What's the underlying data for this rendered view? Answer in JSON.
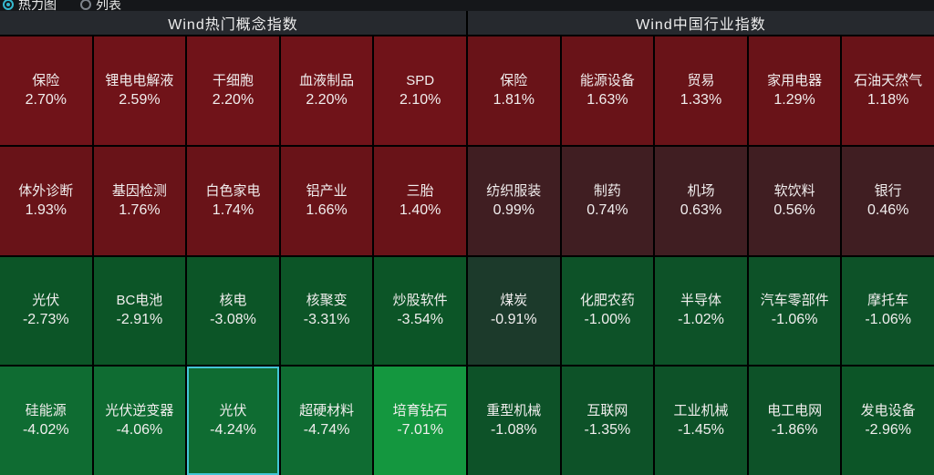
{
  "toolbar": {
    "view_options": [
      {
        "label": "热力图",
        "selected": true
      },
      {
        "label": "列表",
        "selected": false
      }
    ]
  },
  "colors": {
    "accent_cyan": "#35b9cf",
    "selected_cell_border": "#43c6d6",
    "panel_header_bg": "#26292e",
    "grid_line": "#000000",
    "toolbar_bg": "#15171a",
    "text": "#f1eeee",
    "red_strong": "#701319",
    "red_medium": "#691318",
    "red_weak": "#401e22",
    "green_weak": "#1c3a2b",
    "green_medium": "#0d5228",
    "green_strong": "#0c5527",
    "green_stronger": "#0f6c32",
    "green_max": "#14973f"
  },
  "chart_data": [
    {
      "type": "heatmap",
      "title": "Wind热门概念指数",
      "items": [
        {
          "label": "保险",
          "value": 2.7,
          "display": "2.70%",
          "bg": "#701319",
          "selected": false
        },
        {
          "label": "锂电电解液",
          "value": 2.59,
          "display": "2.59%",
          "bg": "#701319",
          "selected": false
        },
        {
          "label": "干细胞",
          "value": 2.2,
          "display": "2.20%",
          "bg": "#701319",
          "selected": false
        },
        {
          "label": "血液制品",
          "value": 2.2,
          "display": "2.20%",
          "bg": "#701319",
          "selected": false
        },
        {
          "label": "SPD",
          "value": 2.1,
          "display": "2.10%",
          "bg": "#701319",
          "selected": false
        },
        {
          "label": "体外诊断",
          "value": 1.93,
          "display": "1.93%",
          "bg": "#691318",
          "selected": false
        },
        {
          "label": "基因检测",
          "value": 1.76,
          "display": "1.76%",
          "bg": "#691318",
          "selected": false
        },
        {
          "label": "白色家电",
          "value": 1.74,
          "display": "1.74%",
          "bg": "#691318",
          "selected": false
        },
        {
          "label": "铝产业",
          "value": 1.66,
          "display": "1.66%",
          "bg": "#691318",
          "selected": false
        },
        {
          "label": "三胎",
          "value": 1.4,
          "display": "1.40%",
          "bg": "#691318",
          "selected": false
        },
        {
          "label": "光伏",
          "value": -2.73,
          "display": "-2.73%",
          "bg": "#0c5527",
          "selected": false
        },
        {
          "label": "BC电池",
          "value": -2.91,
          "display": "-2.91%",
          "bg": "#0c5527",
          "selected": false
        },
        {
          "label": "核电",
          "value": -3.08,
          "display": "-3.08%",
          "bg": "#0c5527",
          "selected": false
        },
        {
          "label": "核聚变",
          "value": -3.31,
          "display": "-3.31%",
          "bg": "#0c5527",
          "selected": false
        },
        {
          "label": "炒股软件",
          "value": -3.54,
          "display": "-3.54%",
          "bg": "#0c5527",
          "selected": false
        },
        {
          "label": "硅能源",
          "value": -4.02,
          "display": "-4.02%",
          "bg": "#0f6c32",
          "selected": false
        },
        {
          "label": "光伏逆变器",
          "value": -4.06,
          "display": "-4.06%",
          "bg": "#0f6c32",
          "selected": false
        },
        {
          "label": "光伏",
          "value": -4.24,
          "display": "-4.24%",
          "bg": "#0f6c32",
          "selected": true
        },
        {
          "label": "超硬材料",
          "value": -4.74,
          "display": "-4.74%",
          "bg": "#0f6c32",
          "selected": false
        },
        {
          "label": "培育钻石",
          "value": -7.01,
          "display": "-7.01%",
          "bg": "#14973f",
          "selected": false
        }
      ]
    },
    {
      "type": "heatmap",
      "title": "Wind中国行业指数",
      "items": [
        {
          "label": "保险",
          "value": 1.81,
          "display": "1.81%",
          "bg": "#691318",
          "selected": false
        },
        {
          "label": "能源设备",
          "value": 1.63,
          "display": "1.63%",
          "bg": "#691318",
          "selected": false
        },
        {
          "label": "贸易",
          "value": 1.33,
          "display": "1.33%",
          "bg": "#691318",
          "selected": false
        },
        {
          "label": "家用电器",
          "value": 1.29,
          "display": "1.29%",
          "bg": "#691318",
          "selected": false
        },
        {
          "label": "石油天然气",
          "value": 1.18,
          "display": "1.18%",
          "bg": "#691318",
          "selected": false
        },
        {
          "label": "纺织服装",
          "value": 0.99,
          "display": "0.99%",
          "bg": "#401e22",
          "selected": false
        },
        {
          "label": "制药",
          "value": 0.74,
          "display": "0.74%",
          "bg": "#401e22",
          "selected": false
        },
        {
          "label": "机场",
          "value": 0.63,
          "display": "0.63%",
          "bg": "#401e22",
          "selected": false
        },
        {
          "label": "软饮料",
          "value": 0.56,
          "display": "0.56%",
          "bg": "#401e22",
          "selected": false
        },
        {
          "label": "银行",
          "value": 0.46,
          "display": "0.46%",
          "bg": "#401e22",
          "selected": false
        },
        {
          "label": "煤炭",
          "value": -0.91,
          "display": "-0.91%",
          "bg": "#1c3a2b",
          "selected": false
        },
        {
          "label": "化肥农药",
          "value": -1.0,
          "display": "-1.00%",
          "bg": "#0d5228",
          "selected": false
        },
        {
          "label": "半导体",
          "value": -1.02,
          "display": "-1.02%",
          "bg": "#0d5228",
          "selected": false
        },
        {
          "label": "汽车零部件",
          "value": -1.06,
          "display": "-1.06%",
          "bg": "#0d5228",
          "selected": false
        },
        {
          "label": "摩托车",
          "value": -1.06,
          "display": "-1.06%",
          "bg": "#0d5228",
          "selected": false
        },
        {
          "label": "重型机械",
          "value": -1.08,
          "display": "-1.08%",
          "bg": "#0d5228",
          "selected": false
        },
        {
          "label": "互联网",
          "value": -1.35,
          "display": "-1.35%",
          "bg": "#0d5228",
          "selected": false
        },
        {
          "label": "工业机械",
          "value": -1.45,
          "display": "-1.45%",
          "bg": "#0d5228",
          "selected": false
        },
        {
          "label": "电工电网",
          "value": -1.86,
          "display": "-1.86%",
          "bg": "#0d5228",
          "selected": false
        },
        {
          "label": "发电设备",
          "value": -2.96,
          "display": "-2.96%",
          "bg": "#0c5527",
          "selected": false
        }
      ]
    }
  ]
}
